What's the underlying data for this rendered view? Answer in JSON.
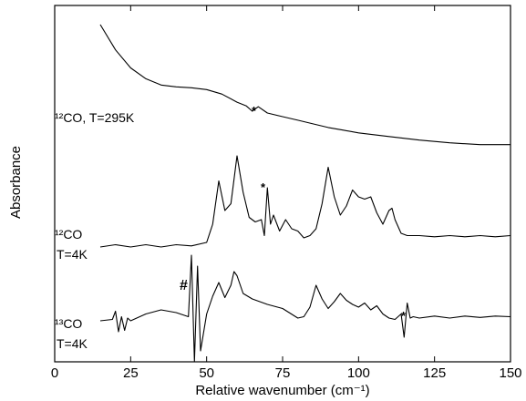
{
  "chart_data": {
    "type": "line",
    "title": "",
    "xlabel": "Relative wavenumber (cm⁻¹)",
    "ylabel": "Absorbance",
    "xlim": [
      0,
      150
    ],
    "x_ticks": [
      "0",
      "25",
      "50",
      "75",
      "100",
      "125",
      "150"
    ],
    "grid": false,
    "legend": "none",
    "series": [
      {
        "label_main": "¹²CO, T=295K",
        "x": [
          15,
          20,
          25,
          30,
          35,
          40,
          45,
          50,
          55,
          60,
          63,
          65,
          67,
          70,
          75,
          80,
          85,
          90,
          95,
          100,
          110,
          120,
          130,
          140,
          150
        ],
        "y": [
          1.0,
          0.86,
          0.76,
          0.7,
          0.665,
          0.655,
          0.65,
          0.64,
          0.615,
          0.57,
          0.55,
          0.52,
          0.545,
          0.51,
          0.49,
          0.47,
          0.45,
          0.43,
          0.415,
          0.4,
          0.38,
          0.36,
          0.345,
          0.335,
          0.335
        ]
      },
      {
        "label_main": "¹²CO",
        "label_sub": "T=4K",
        "x": [
          15,
          20,
          25,
          30,
          35,
          40,
          45,
          50,
          52,
          54,
          56,
          58,
          60,
          62,
          64,
          66,
          68,
          69,
          70,
          71,
          72,
          74,
          76,
          78,
          80,
          82,
          84,
          86,
          88,
          90,
          92,
          94,
          96,
          98,
          100,
          102,
          104,
          106,
          108,
          110,
          111,
          112,
          114,
          116,
          120,
          125,
          130,
          135,
          140,
          145,
          150
        ],
        "y": [
          -0.02,
          -0.01,
          -0.02,
          -0.01,
          -0.02,
          -0.01,
          -0.015,
          0.0,
          0.08,
          0.27,
          0.14,
          0.17,
          0.38,
          0.22,
          0.11,
          0.09,
          0.1,
          0.03,
          0.24,
          0.08,
          0.12,
          0.05,
          0.1,
          0.06,
          0.05,
          0.02,
          0.03,
          0.06,
          0.17,
          0.33,
          0.2,
          0.12,
          0.16,
          0.23,
          0.2,
          0.19,
          0.2,
          0.13,
          0.08,
          0.14,
          0.15,
          0.1,
          0.04,
          0.03,
          0.03,
          0.025,
          0.03,
          0.025,
          0.03,
          0.025,
          0.03
        ]
      },
      {
        "label_main": "¹³CO",
        "label_sub": "T=4K",
        "x": [
          15,
          19,
          20,
          21,
          22,
          23,
          24,
          25,
          30,
          35,
          40,
          44,
          45,
          46,
          47,
          48,
          50,
          52,
          54,
          56,
          58,
          59,
          60,
          62,
          65,
          70,
          75,
          80,
          82,
          84,
          86,
          88,
          90,
          92,
          94,
          96,
          98,
          100,
          102,
          104,
          106,
          108,
          110,
          112,
          114,
          115,
          116,
          117,
          118,
          120,
          125,
          130,
          135,
          140,
          145,
          150
        ],
        "y": [
          0.0,
          0.01,
          0.07,
          -0.08,
          0.03,
          -0.07,
          0.02,
          0.0,
          0.05,
          0.08,
          0.06,
          0.03,
          0.48,
          -0.3,
          0.4,
          -0.22,
          0.05,
          0.18,
          0.28,
          0.17,
          0.26,
          0.36,
          0.33,
          0.2,
          0.16,
          0.12,
          0.09,
          0.02,
          0.03,
          0.1,
          0.26,
          0.16,
          0.09,
          0.14,
          0.2,
          0.15,
          0.12,
          0.1,
          0.13,
          0.08,
          0.11,
          0.05,
          0.02,
          0.01,
          0.05,
          -0.12,
          0.13,
          0.02,
          0.03,
          0.02,
          0.035,
          0.02,
          0.035,
          0.025,
          0.035,
          0.03
        ]
      }
    ],
    "annotations": [
      "*",
      "*",
      "*",
      "#"
    ]
  }
}
